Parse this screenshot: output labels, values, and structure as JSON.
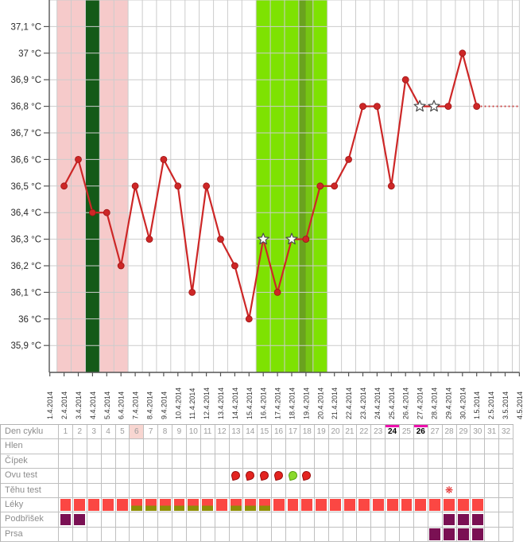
{
  "chart_data": {
    "type": "line",
    "title": "",
    "ylabel": "°C",
    "grid": true,
    "line_color": "#cd2727",
    "point_color": "#cd2727",
    "y_ticks": [
      {
        "label": "37,1 °C",
        "temp": 37.1
      },
      {
        "label": "37 °C",
        "temp": 37.0
      },
      {
        "label": "36,9 °C",
        "temp": 36.9
      },
      {
        "label": "36,8 °C",
        "temp": 36.8
      },
      {
        "label": "36,7 °C",
        "temp": 36.7
      },
      {
        "label": "36,6 °C",
        "temp": 36.6
      },
      {
        "label": "36,5 °C",
        "temp": 36.5
      },
      {
        "label": "36,4 °C",
        "temp": 36.4
      },
      {
        "label": "36,3 °C",
        "temp": 36.3
      },
      {
        "label": "36,2 °C",
        "temp": 36.2
      },
      {
        "label": "36,1 °C",
        "temp": 36.1
      },
      {
        "label": "36 °C",
        "temp": 36.0
      },
      {
        "label": "35,9 °C",
        "temp": 35.9
      }
    ],
    "ylim": [
      35.8,
      37.2
    ],
    "x_dates": [
      "1.4.2014",
      "2.4.2014",
      "3.4.2014",
      "4.4.2014",
      "5.4.2014",
      "6.4.2014",
      "7.4.2014",
      "8.4.2014",
      "9.4.2014",
      "10.4.2014",
      "11.4.2014",
      "12.4.2014",
      "13.4.2014",
      "14.4.2014",
      "15.4.2014",
      "16.4.2014",
      "17.4.2014",
      "18.4.2014",
      "19.4.2014",
      "20.4.2014",
      "21.4.2014",
      "22.4.2014",
      "23.4.2014",
      "24.4.2014",
      "25.4.2014",
      "26.4.2014",
      "27.4.2014",
      "28.4.2014",
      "29.4.2014",
      "30.4.2014",
      "1.5.2014",
      "2.5.2014",
      "3.5.2014",
      "4.5.2014"
    ],
    "series": [
      {
        "name": "basal-temperature",
        "points": [
          {
            "day": 2,
            "date": "2.4.2014",
            "temp": 36.5,
            "marker": "dot"
          },
          {
            "day": 3,
            "date": "3.4.2014",
            "temp": 36.6,
            "marker": "dot"
          },
          {
            "day": 4,
            "date": "4.4.2014",
            "temp": 36.4,
            "marker": "dot"
          },
          {
            "day": 5,
            "date": "5.4.2014",
            "temp": 36.4,
            "marker": "dot"
          },
          {
            "day": 6,
            "date": "6.4.2014",
            "temp": 36.2,
            "marker": "dot"
          },
          {
            "day": 7,
            "date": "7.4.2014",
            "temp": 36.5,
            "marker": "dot"
          },
          {
            "day": 8,
            "date": "8.4.2014",
            "temp": 36.3,
            "marker": "dot"
          },
          {
            "day": 9,
            "date": "9.4.2014",
            "temp": 36.6,
            "marker": "dot"
          },
          {
            "day": 10,
            "date": "10.4.2014",
            "temp": 36.5,
            "marker": "dot"
          },
          {
            "day": 11,
            "date": "11.4.2014",
            "temp": 36.1,
            "marker": "dot"
          },
          {
            "day": 12,
            "date": "12.4.2014",
            "temp": 36.5,
            "marker": "dot"
          },
          {
            "day": 13,
            "date": "13.4.2014",
            "temp": 36.3,
            "marker": "dot"
          },
          {
            "day": 14,
            "date": "14.4.2014",
            "temp": 36.2,
            "marker": "dot"
          },
          {
            "day": 15,
            "date": "15.4.2014",
            "temp": 36.0,
            "marker": "dot"
          },
          {
            "day": 16,
            "date": "16.4.2014",
            "temp": 36.3,
            "marker": "star"
          },
          {
            "day": 17,
            "date": "17.4.2014",
            "temp": 36.1,
            "marker": "dot"
          },
          {
            "day": 18,
            "date": "18.4.2014",
            "temp": 36.3,
            "marker": "star"
          },
          {
            "day": 19,
            "date": "19.4.2014",
            "temp": 36.3,
            "marker": "dot"
          },
          {
            "day": 20,
            "date": "20.4.2014",
            "temp": 36.5,
            "marker": "dot"
          },
          {
            "day": 21,
            "date": "21.4.2014",
            "temp": 36.5,
            "marker": "dot"
          },
          {
            "day": 22,
            "date": "22.4.2014",
            "temp": 36.6,
            "marker": "dot"
          },
          {
            "day": 23,
            "date": "23.4.2014",
            "temp": 36.8,
            "marker": "dot"
          },
          {
            "day": 24,
            "date": "24.4.2014",
            "temp": 36.8,
            "marker": "dot"
          },
          {
            "day": 25,
            "date": "25.4.2014",
            "temp": 36.5,
            "marker": "dot"
          },
          {
            "day": 26,
            "date": "26.4.2014",
            "temp": 36.9,
            "marker": "dot"
          },
          {
            "day": 27,
            "date": "27.4.2014",
            "temp": 36.8,
            "marker": "star"
          },
          {
            "day": 28,
            "date": "28.4.2014",
            "temp": 36.8,
            "marker": "star"
          },
          {
            "day": 29,
            "date": "29.4.2014",
            "temp": 36.8,
            "marker": "dot"
          },
          {
            "day": 30,
            "date": "30.4.2014",
            "temp": 37.0,
            "marker": "dot"
          },
          {
            "day": 31,
            "date": "1.5.2014",
            "temp": 36.8,
            "marker": "dot"
          }
        ]
      }
    ],
    "projection": {
      "temp": 36.8,
      "from_day": 31,
      "to_day": 34,
      "from_date": "1.5.2014",
      "to_date": "4.5.2014",
      "style": "dotted"
    },
    "star_dates": [
      "16.4.2014",
      "18.4.2014",
      "27.4.2014",
      "28.4.2014"
    ],
    "bands": [
      {
        "name": "menstruation",
        "from": 1.5,
        "to": 6.5,
        "from_date": "2.4.2014",
        "to_date": "6.4.2014",
        "color": "#f6caca"
      },
      {
        "name": "fertile-window",
        "from": 15.5,
        "to": 20.5,
        "from_date": "16.4.2014",
        "to_date": "20.4.2014",
        "color": "#7ee202"
      },
      {
        "name": "highlight-day",
        "from": 3.5,
        "to": 4.5,
        "from_date": "4.4.2014",
        "to_date": "4.4.2014",
        "color": "#145a18"
      },
      {
        "name": "ovulation-stripe-dark",
        "from": 18.5,
        "to": 19.0,
        "from_date": "19.4.2014",
        "to_date": "19.4.2014",
        "color": "#6aa21f"
      },
      {
        "name": "ovulation-stripe-medium",
        "from": 19.0,
        "to": 19.5,
        "from_date": "19.4.2014",
        "to_date": "19.4.2014",
        "color": "#76c414"
      }
    ]
  },
  "table": {
    "row_labels": [
      "Den cyklu",
      "Hlen",
      "Čípek",
      "Ovu test",
      "Těhu test",
      "Léky",
      "Podbřišek",
      "Prsa"
    ],
    "day_numbers": [
      1,
      2,
      3,
      4,
      5,
      6,
      7,
      8,
      9,
      10,
      11,
      12,
      13,
      14,
      15,
      16,
      17,
      18,
      19,
      20,
      21,
      22,
      23,
      24,
      25,
      26,
      27,
      28,
      29,
      30,
      31,
      32
    ],
    "selected_day": 6,
    "magenta_marked_days": [
      24,
      26
    ],
    "ovu_test": {
      "negative_days": [
        13,
        14,
        15,
        16,
        18
      ],
      "positive_days": [
        17
      ]
    },
    "tehu_test": {
      "flower_days": [
        28
      ],
      "flower_glyph": "❋"
    },
    "leky": {
      "full_days": [
        1,
        2,
        3,
        4,
        5,
        12,
        16,
        17,
        18,
        19,
        20,
        21,
        22,
        23,
        24,
        25,
        26,
        27,
        28,
        29,
        30
      ],
      "two_tone_days": [
        6,
        7,
        8,
        9,
        10,
        11,
        13,
        14,
        15
      ]
    },
    "podbrisek_days": [
      1,
      2,
      28,
      29,
      30
    ],
    "prsa_days": [
      27,
      28,
      29,
      30
    ],
    "colors": {
      "square_red": "#fb4743",
      "square_olive": "#8f8f06",
      "square_purple": "#7a1053",
      "magenta_bar": "#ee10ad",
      "selected_pink": "#f8d6d1",
      "drop_red": "#e3231f",
      "drop_red_border": "#9c0f0f",
      "drop_green": "#8ad92c",
      "drop_green_border": "#56a00e",
      "flower_red": "#e02424"
    }
  }
}
